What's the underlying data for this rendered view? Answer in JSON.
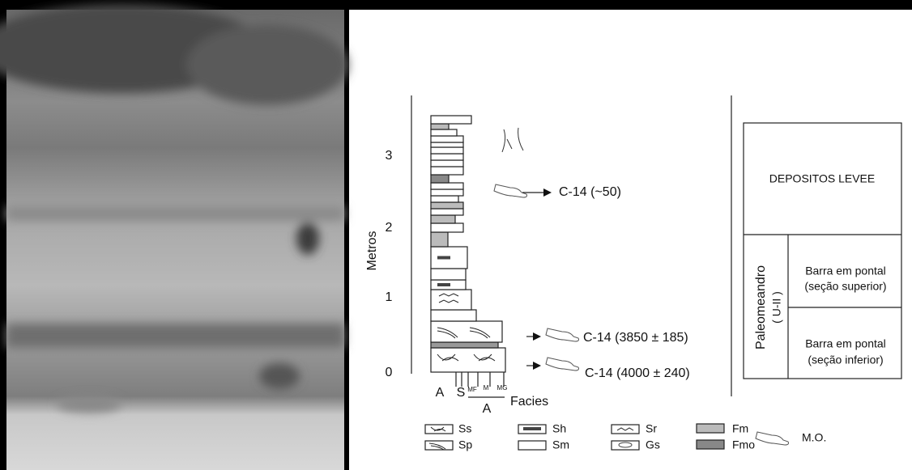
{
  "column": {
    "axis_label": "Metros",
    "ticks": [
      0,
      1,
      2,
      3
    ],
    "grain_labels": [
      "A",
      "S",
      "MF",
      "M",
      "MG"
    ],
    "grain_group": "A",
    "x_label": "Facies"
  },
  "dates": [
    "C-14 (~50)",
    "C-14 (3850 ± 185)",
    "C-14 (4000 ± 240)"
  ],
  "interpretation": {
    "upper": "DEPOSITOS LEVEE",
    "unit": "Paleomeandro",
    "unit_code": "( U-II )",
    "sections": [
      [
        "Barra em pontal",
        "(seção superior)"
      ],
      [
        "Barra em pontal",
        "(seção inferior)"
      ]
    ]
  },
  "legend": [
    "Ss",
    "Sp",
    "Sh",
    "Sm",
    "Sr",
    "Gs",
    "Fm",
    "Fmo",
    "M.O."
  ]
}
